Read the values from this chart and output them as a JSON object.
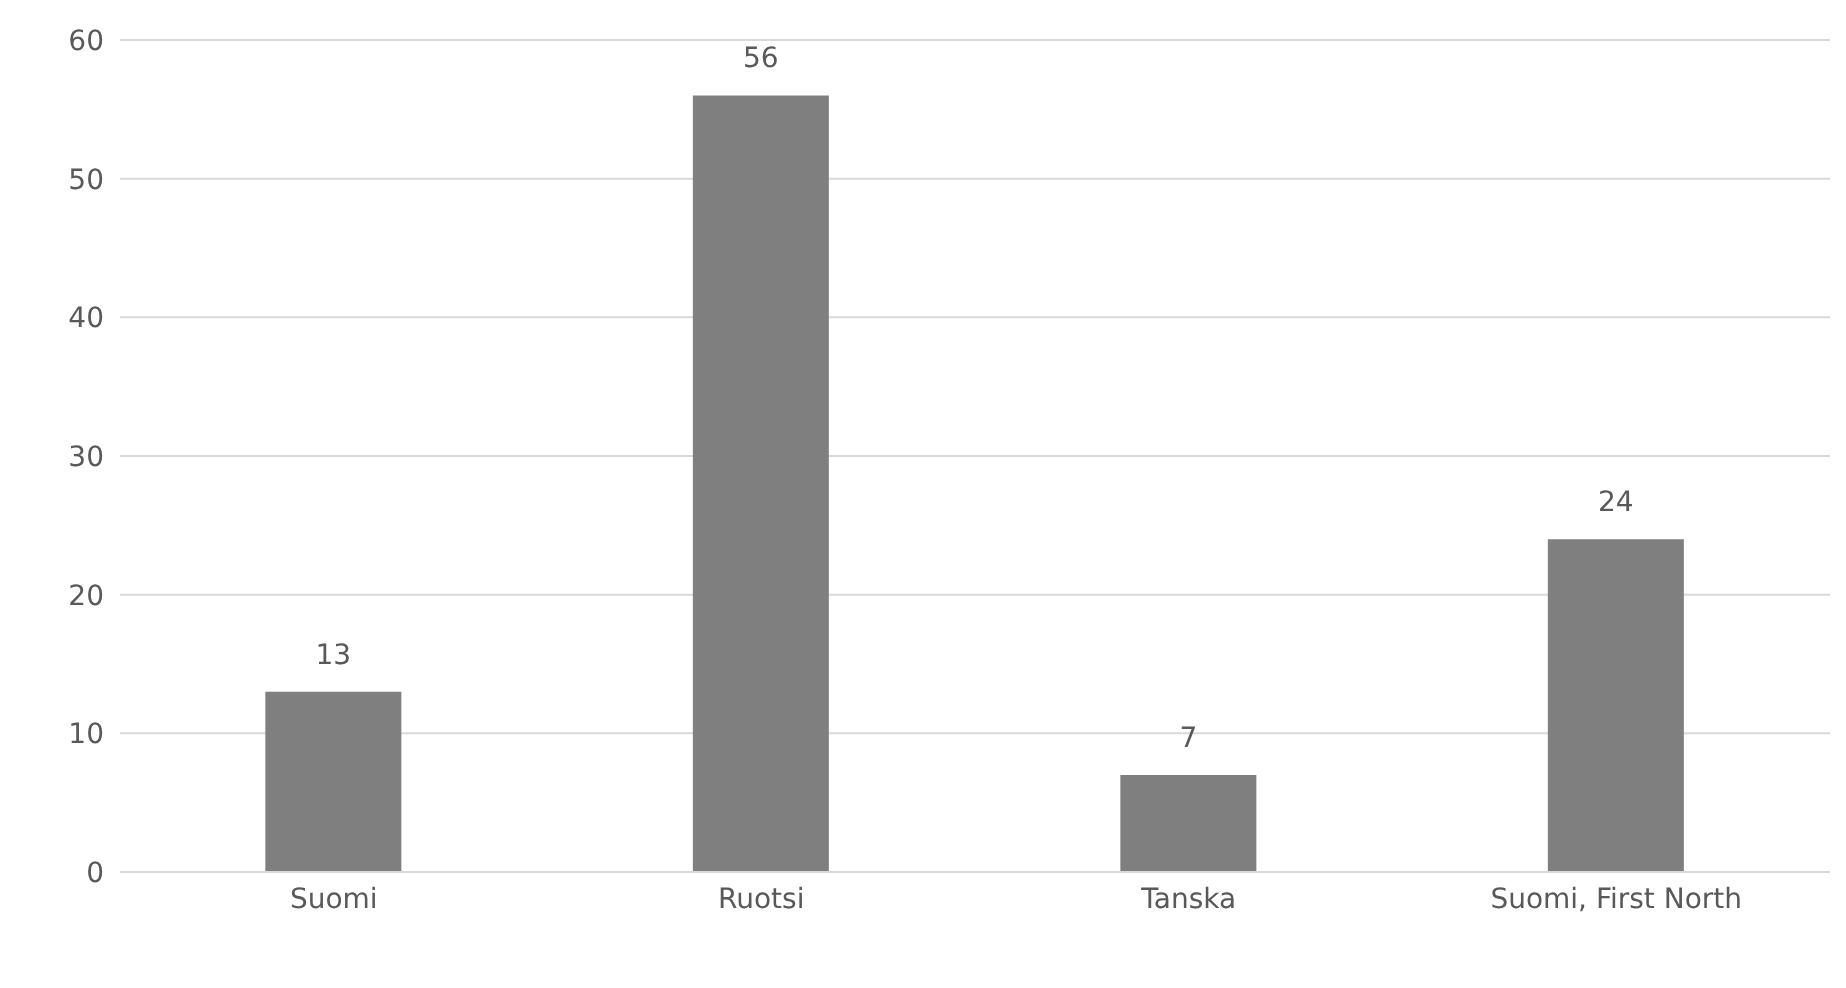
{
  "chart_data": {
    "type": "bar",
    "categories": [
      "Suomi",
      "Ruotsi",
      "Tanska",
      "Suomi, First North"
    ],
    "values": [
      13,
      56,
      7,
      24
    ],
    "color": "#7f7f7f",
    "ylim": [
      0,
      60
    ],
    "yticks": [
      0,
      10,
      20,
      30,
      40,
      50,
      60
    ],
    "grid": "y",
    "data_labels": true
  }
}
